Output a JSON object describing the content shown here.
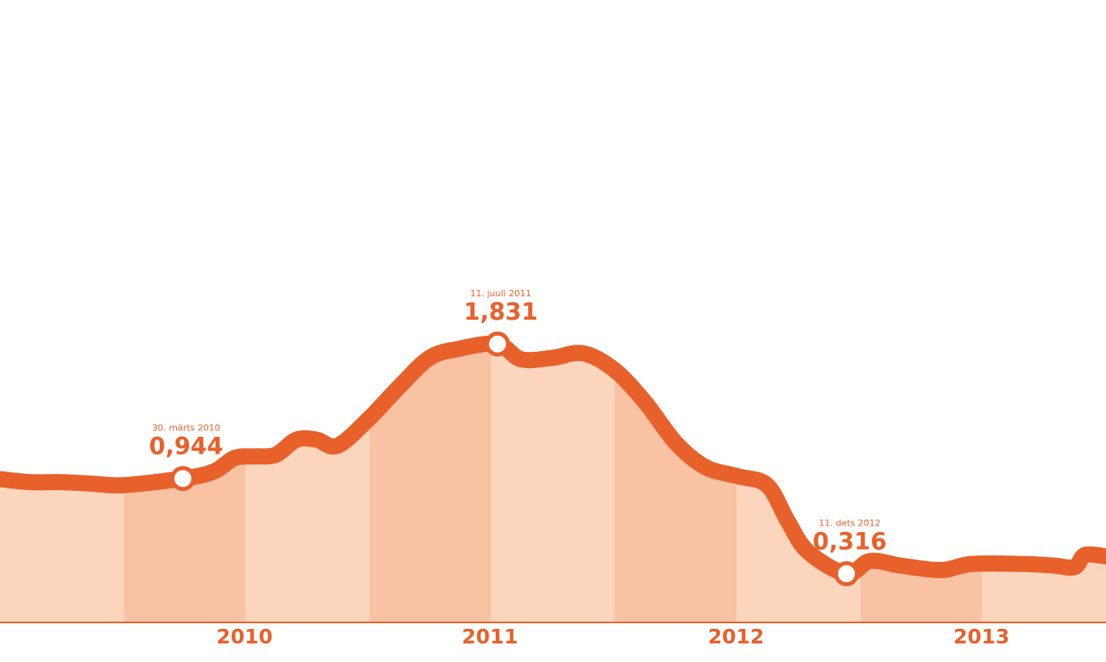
{
  "chart_data": {
    "type": "area",
    "title": "",
    "xlabel": "",
    "ylabel": "",
    "grid": false,
    "legend": "none",
    "x_ticks": [
      "2010",
      "2011",
      "2012",
      "2013"
    ],
    "xlim": [
      "2009-07-01",
      "2014-01-01"
    ],
    "ylim": [
      0,
      4.1
    ],
    "colors": {
      "line": "#e8612b",
      "band_light": "#fcd5bd",
      "band_dark": "#f9c2a2",
      "text": "#e8612b"
    },
    "series": [
      {
        "points": [
          [
            "2009-07-01",
            0.94
          ],
          [
            "2009-08-15",
            0.92
          ],
          [
            "2009-10-01",
            0.92
          ],
          [
            "2009-11-15",
            0.91
          ],
          [
            "2010-01-01",
            0.9
          ],
          [
            "2010-03-30",
            0.944
          ],
          [
            "2010-05-15",
            0.99
          ],
          [
            "2010-06-15",
            1.08
          ],
          [
            "2010-07-15",
            1.09
          ],
          [
            "2010-08-15",
            1.1
          ],
          [
            "2010-09-15",
            1.2
          ],
          [
            "2010-10-15",
            1.2
          ],
          [
            "2010-11-15",
            1.16
          ],
          [
            "2011-01-01",
            1.34
          ],
          [
            "2011-02-15",
            1.55
          ],
          [
            "2011-04-01",
            1.74
          ],
          [
            "2011-05-15",
            1.8
          ],
          [
            "2011-07-11",
            1.831
          ],
          [
            "2011-08-15",
            1.73
          ],
          [
            "2011-10-01",
            1.74
          ],
          [
            "2011-11-15",
            1.77
          ],
          [
            "2012-01-01",
            1.66
          ],
          [
            "2012-02-15",
            1.45
          ],
          [
            "2012-04-01",
            1.18
          ],
          [
            "2012-05-15",
            1.02
          ],
          [
            "2012-07-01",
            0.96
          ],
          [
            "2012-08-15",
            0.9
          ],
          [
            "2012-09-15",
            0.66
          ],
          [
            "2012-10-15",
            0.46
          ],
          [
            "2012-12-11",
            0.316
          ],
          [
            "2013-01-15",
            0.4
          ],
          [
            "2013-03-01",
            0.37
          ],
          [
            "2013-05-01",
            0.34
          ],
          [
            "2013-06-15",
            0.38
          ],
          [
            "2013-09-01",
            0.38
          ],
          [
            "2013-10-15",
            0.37
          ],
          [
            "2013-11-15",
            0.36
          ],
          [
            "2013-12-01",
            0.44
          ],
          [
            "2014-01-01",
            0.43
          ]
        ]
      }
    ],
    "annotations": [
      {
        "date_label": "30. märts 2010",
        "value_label": "0,944",
        "x": "2010-03-30",
        "y": 0.944
      },
      {
        "date_label": "11. juuli 2011",
        "value_label": "1,831",
        "x": "2011-07-11",
        "y": 1.831
      },
      {
        "date_label": "11. dets 2012",
        "value_label": "0,316",
        "x": "2012-12-11",
        "y": 0.316
      }
    ]
  }
}
